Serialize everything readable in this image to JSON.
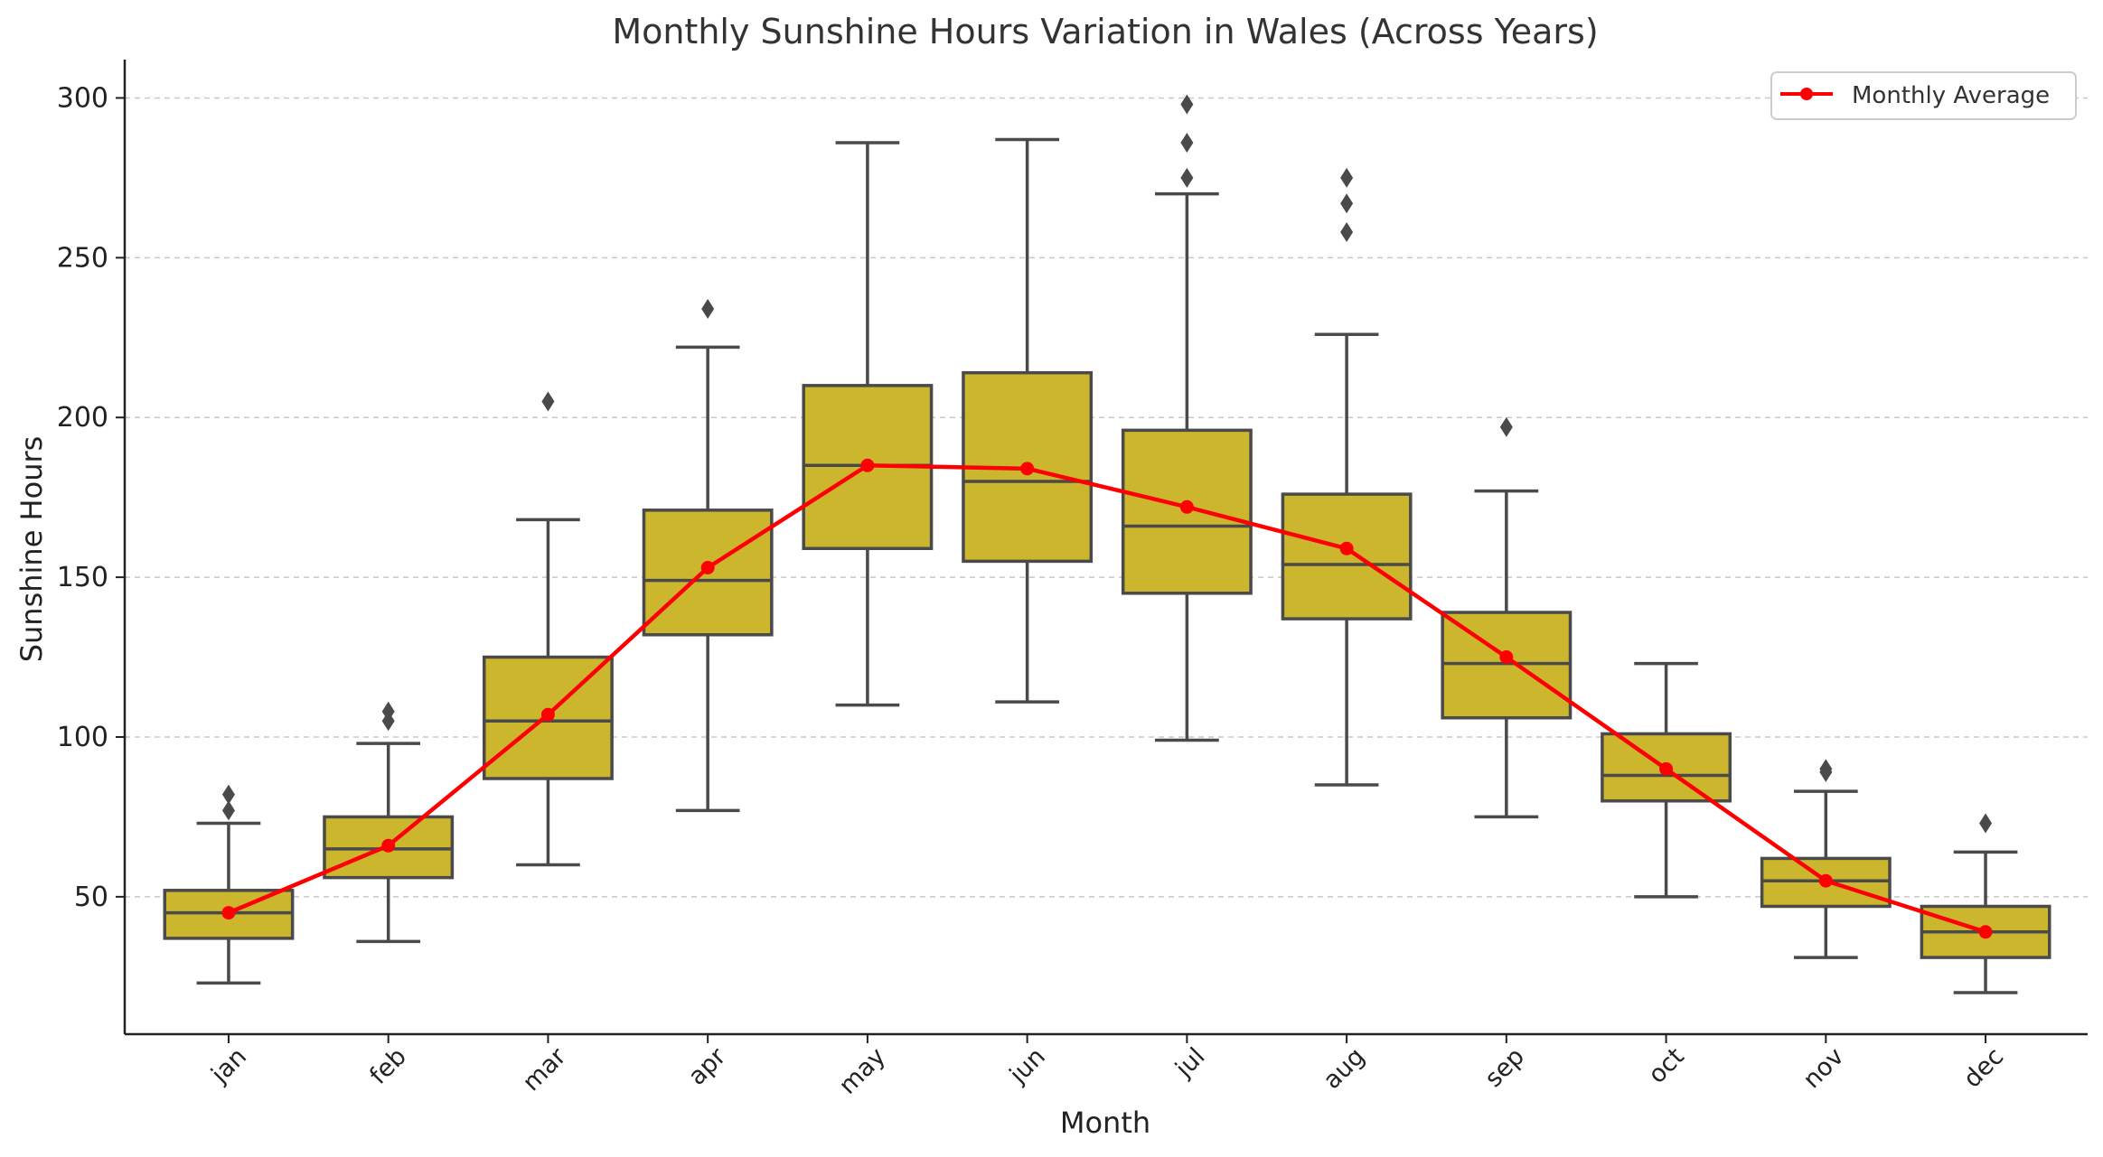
{
  "chart_data": {
    "type": "box",
    "title": "Monthly Sunshine Hours Variation in Wales (Across Years)",
    "xlabel": "Month",
    "ylabel": "Sunshine Hours",
    "ylim": [
      7,
      312
    ],
    "yticks": [
      50,
      100,
      150,
      200,
      250,
      300
    ],
    "grid": "y-dashed",
    "categories": [
      "jan",
      "feb",
      "mar",
      "apr",
      "may",
      "jun",
      "jul",
      "aug",
      "sep",
      "oct",
      "nov",
      "dec"
    ],
    "boxes": [
      {
        "whisker_low": 23,
        "q1": 37,
        "median": 45,
        "q3": 52,
        "whisker_high": 73,
        "outliers": [
          77,
          82
        ]
      },
      {
        "whisker_low": 36,
        "q1": 56,
        "median": 65,
        "q3": 75,
        "whisker_high": 98,
        "outliers": [
          105,
          108
        ]
      },
      {
        "whisker_low": 60,
        "q1": 87,
        "median": 105,
        "q3": 125,
        "whisker_high": 168,
        "outliers": [
          205
        ]
      },
      {
        "whisker_low": 77,
        "q1": 132,
        "median": 149,
        "q3": 171,
        "whisker_high": 222,
        "outliers": [
          234
        ]
      },
      {
        "whisker_low": 110,
        "q1": 159,
        "median": 185,
        "q3": 210,
        "whisker_high": 286,
        "outliers": []
      },
      {
        "whisker_low": 111,
        "q1": 155,
        "median": 180,
        "q3": 214,
        "whisker_high": 287,
        "outliers": []
      },
      {
        "whisker_low": 99,
        "q1": 145,
        "median": 166,
        "q3": 196,
        "whisker_high": 270,
        "outliers": [
          275,
          286,
          298
        ]
      },
      {
        "whisker_low": 85,
        "q1": 137,
        "median": 154,
        "q3": 176,
        "whisker_high": 226,
        "outliers": [
          258,
          267,
          275
        ]
      },
      {
        "whisker_low": 75,
        "q1": 106,
        "median": 123,
        "q3": 139,
        "whisker_high": 177,
        "outliers": [
          197
        ]
      },
      {
        "whisker_low": 50,
        "q1": 80,
        "median": 88,
        "q3": 101,
        "whisker_high": 123,
        "outliers": []
      },
      {
        "whisker_low": 31,
        "q1": 47,
        "median": 55,
        "q3": 62,
        "whisker_high": 83,
        "outliers": [
          89,
          90
        ]
      },
      {
        "whisker_low": 20,
        "q1": 31,
        "median": 39,
        "q3": 47,
        "whisker_high": 64,
        "outliers": [
          73
        ]
      }
    ],
    "series": [
      {
        "name": "Monthly Average",
        "type": "line",
        "values": [
          45,
          66,
          107,
          153,
          185,
          184,
          172,
          159,
          125,
          90,
          55,
          39
        ]
      }
    ],
    "legend": {
      "position": "top-right"
    },
    "colors": {
      "box_fill": "#CCB62E",
      "box_edge": "#4A4A4A",
      "line": "#FF0000",
      "grid": "#C8C8C8",
      "axis": "#222222"
    }
  }
}
